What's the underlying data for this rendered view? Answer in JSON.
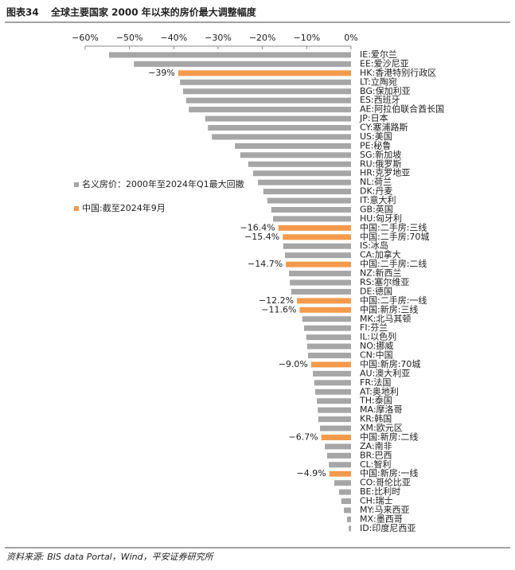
{
  "chart_data": {
    "type": "bar",
    "orientation": "horizontal",
    "figure_label": "图表34",
    "title": "全球主要国家 2000 年以来的房价最大调整幅度",
    "note": "资料来源: BIS data Portal，Wind，平安证券研究所",
    "categories": [
      "IE:爱尔兰",
      "EE:爱沙尼亚",
      "HK:香港特别行政区",
      "LT:立陶宛",
      "BG:保加利亚",
      "ES:西班牙",
      "AE:阿拉伯联合酋长国",
      "JP:日本",
      "CY:塞浦路斯",
      "US:美国",
      "PE:秘鲁",
      "SG:新加坡",
      "RU:俄罗斯",
      "HR:克罗地亚",
      "NL:荷兰",
      "DK:丹麦",
      "IT:意大利",
      "GB:英国",
      "HU:匈牙利",
      "中国:二手房:三线",
      "中国:二手房:70城",
      "IS:冰岛",
      "CA:加拿大",
      "中国:二手房:二线",
      "NZ:新西兰",
      "RS:塞尔维亚",
      "DE:德国",
      "中国:二手房:一线",
      "中国:新房:三线",
      "MK:北马其顿",
      "FI:芬兰",
      "IL:以色列",
      "NO:挪威",
      "CN:中国",
      "中国:新房:70城",
      "AU:澳大利亚",
      "FR:法国",
      "AT:奥地利",
      "TH:泰国",
      "MA:摩洛哥",
      "KR:韩国",
      "XM:欧元区",
      "中国:新房:二线",
      "ZA:南非",
      "BR:巴西",
      "CL:智利",
      "中国:新房:一线",
      "CO:哥伦比亚",
      "BE:比利时",
      "CH:瑞士",
      "MY:马来西亚",
      "MX:墨西哥",
      "ID:印度尼西亚"
    ],
    "series": [
      {
        "name": "名义房价：2000年至2024年Q1最大回撤",
        "color": "#a6a6a6",
        "values": [
          -54.6,
          -49.0,
          null,
          -38.6,
          -37.9,
          -37.2,
          -36.6,
          -32.9,
          -32.3,
          -31.4,
          -26.2,
          -25.0,
          -23.2,
          -22.1,
          -21.0,
          -19.8,
          -18.9,
          -18.0,
          -17.6,
          null,
          null,
          -15.3,
          -14.9,
          null,
          -14.0,
          -13.8,
          -13.5,
          null,
          null,
          -11.0,
          -10.6,
          -10.1,
          -9.9,
          -9.7,
          null,
          -8.6,
          -8.3,
          -8.1,
          -7.7,
          -7.5,
          -7.4,
          -7.0,
          null,
          -5.9,
          -5.4,
          -5.0,
          null,
          -3.8,
          -2.7,
          -2.2,
          -1.6,
          -0.9,
          -0.5
        ]
      },
      {
        "name": "中国:截至2024年9月",
        "color": "#f39a4c",
        "values": [
          null,
          null,
          -39,
          null,
          null,
          null,
          null,
          null,
          null,
          null,
          null,
          null,
          null,
          null,
          null,
          null,
          null,
          null,
          null,
          -16.4,
          -15.4,
          null,
          null,
          -14.7,
          null,
          null,
          null,
          -12.2,
          -11.6,
          null,
          null,
          null,
          null,
          null,
          -9.0,
          null,
          null,
          null,
          null,
          null,
          null,
          null,
          -6.7,
          null,
          null,
          null,
          -4.9,
          null,
          null,
          null,
          null,
          null,
          null
        ],
        "value_labels": [
          null,
          null,
          "−39%",
          null,
          null,
          null,
          null,
          null,
          null,
          null,
          null,
          null,
          null,
          null,
          null,
          null,
          null,
          null,
          null,
          "−16.4%",
          "−15.4%",
          null,
          null,
          "−14.7%",
          null,
          null,
          null,
          "−12.2%",
          "−11.6%",
          null,
          null,
          null,
          null,
          null,
          "−9.0%",
          null,
          null,
          null,
          null,
          null,
          null,
          null,
          "−6.7%",
          null,
          null,
          null,
          "−4.9%",
          null,
          null,
          null,
          null,
          null,
          null
        ]
      }
    ],
    "xlim": [
      -60,
      0
    ],
    "xticks": [
      {
        "value": -60,
        "label": "−60%"
      },
      {
        "value": -50,
        "label": "−50%"
      },
      {
        "value": -40,
        "label": "−40%"
      },
      {
        "value": -30,
        "label": "−30%"
      },
      {
        "value": -20,
        "label": "−20%"
      },
      {
        "value": -10,
        "label": "−10%"
      },
      {
        "value": 0,
        "label": "0%"
      }
    ],
    "grid": false,
    "legend": "left"
  }
}
